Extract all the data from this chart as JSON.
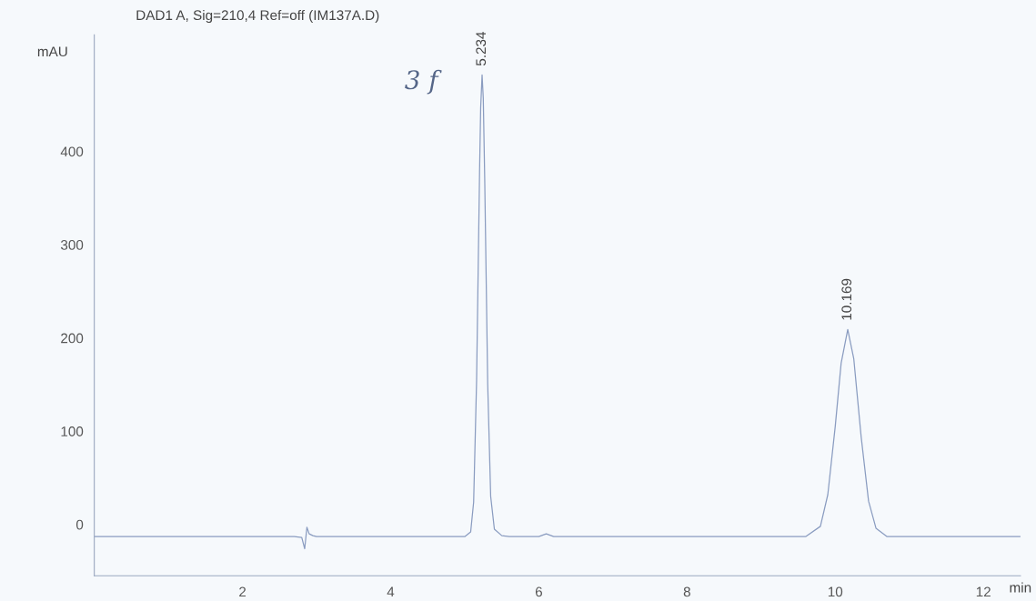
{
  "chart_data": {
    "type": "line",
    "title": "DAD1 A, Sig=210,4 Ref=off (IM137A.D)",
    "xlabel": "min",
    "ylabel": "mAU",
    "x": [
      0,
      2.7,
      2.8,
      2.84,
      2.87,
      2.9,
      2.95,
      3.0,
      4.9,
      5.0,
      5.08,
      5.12,
      5.16,
      5.2,
      5.215,
      5.234,
      5.25,
      5.27,
      5.31,
      5.35,
      5.4,
      5.5,
      5.6,
      6.0,
      6.1,
      6.2,
      9.6,
      9.8,
      9.9,
      10.0,
      10.08,
      10.169,
      10.25,
      10.35,
      10.45,
      10.55,
      10.7,
      12.5
    ],
    "series": [
      {
        "color": "#8a9cc0",
        "values": [
          -13,
          -13,
          -14,
          -26,
          -3,
          -10,
          -12,
          -13,
          -13,
          -13,
          -8,
          24,
          155,
          378,
          447,
          482,
          457,
          368,
          150,
          30,
          -5,
          -12,
          -13,
          -13,
          -10,
          -13,
          -13,
          -2,
          32,
          105,
          173,
          209,
          178,
          94,
          25,
          -4,
          -13,
          -13
        ]
      }
    ],
    "annotations": [
      {
        "text": "5.234",
        "x": 5.234,
        "y": 482
      },
      {
        "text": "10.169",
        "x": 10.169,
        "y": 209
      },
      "3 f"
    ],
    "xlim": [
      0,
      12.5
    ],
    "ylim": [
      -55,
      525
    ],
    "xticks": [
      2,
      4,
      6,
      8,
      10,
      12
    ],
    "yticks": [
      0,
      100,
      200,
      300,
      400
    ],
    "grid": false,
    "legend": false,
    "marker": "none",
    "line_style": "solid"
  }
}
